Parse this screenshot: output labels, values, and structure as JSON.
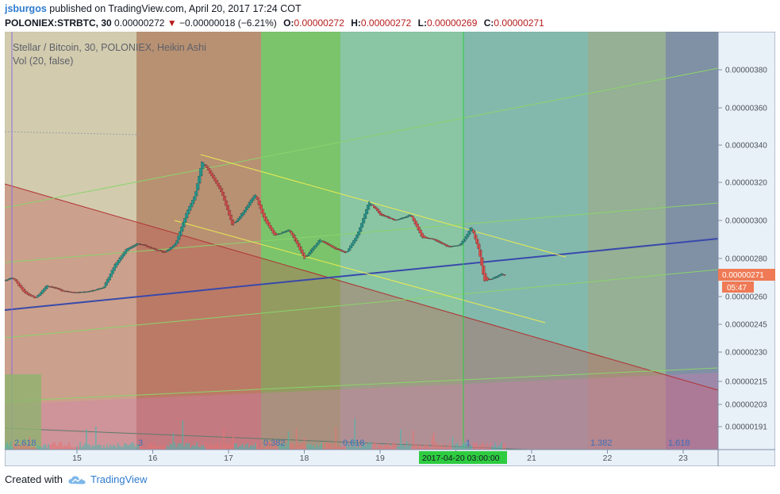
{
  "header": {
    "user": "jsburgos",
    "published": "published on TradingView.com, April 20, 2017 17:24 COT",
    "symbol": "POLONIEX:STRBTC, 30",
    "last": "0.00000272",
    "arrow": "▼",
    "change": "−0.00000018 (−6.21%)",
    "o_label": "O:",
    "o_value": "0.00000272",
    "h_label": "H:",
    "h_value": "0.00000272",
    "l_label": "L:",
    "l_value": "0.00000269",
    "c_label": "C:",
    "c_value": "0.00000271"
  },
  "legend": {
    "title": "Stellar / Bitcoin, 30, POLONIEX, Heikin Ashi",
    "vol": "Vol (20, false)"
  },
  "price_badge": "0.00000271",
  "time_badge": "05:47",
  "crosshair_label": "2017-04-20 03:00:00",
  "fib_labels": [
    "2.618",
    "3",
    "0.382",
    "0.618",
    "1",
    "1.382",
    "1.618"
  ],
  "footer": {
    "created": "Created with",
    "brand": "TradingView"
  },
  "colors": {
    "up": "#26a69a",
    "down": "#ef5350",
    "zone_tan": "#d4c9a6",
    "zone_red": "#c0704f",
    "zone_green": "#3fb24a",
    "zone_teal": "#3aa382",
    "zone_blue": "#2a6f8f",
    "zone_purple": "#3b3f80",
    "trend_blue": "#3949ab",
    "channel": "#e8e84a",
    "crosshair": "#2ecc40"
  },
  "chart_data": {
    "type": "candlestick",
    "style": "Heikin Ashi",
    "interval": "30",
    "exchange": "POLONIEX",
    "y_ticks": [
      "0.00000380",
      "0.00000360",
      "0.00000340",
      "0.00000320",
      "0.00000300",
      "0.00000280",
      "0.00000260",
      "0.00000245",
      "0.00000230",
      "0.00000215",
      "0.00000203",
      "0.00000191"
    ],
    "x_ticks": [
      "15",
      "16",
      "17",
      "18",
      "19",
      "20",
      "21",
      "22",
      "23"
    ],
    "price_path": [
      [
        14.0,
        2.68e-06
      ],
      [
        14.15,
        2.7e-06
      ],
      [
        14.3,
        2.62e-06
      ],
      [
        14.45,
        2.59e-06
      ],
      [
        14.6,
        2.66e-06
      ],
      [
        14.8,
        2.63e-06
      ],
      [
        15.0,
        2.62e-06
      ],
      [
        15.2,
        2.63e-06
      ],
      [
        15.35,
        2.65e-06
      ],
      [
        15.5,
        2.77e-06
      ],
      [
        15.65,
        2.85e-06
      ],
      [
        15.8,
        2.88e-06
      ],
      [
        16.0,
        2.85e-06
      ],
      [
        16.15,
        2.83e-06
      ],
      [
        16.3,
        2.88e-06
      ],
      [
        16.45,
        3.05e-06
      ],
      [
        16.55,
        3.13e-06
      ],
      [
        16.65,
        3.32e-06
      ],
      [
        16.75,
        3.25e-06
      ],
      [
        16.9,
        3.15e-06
      ],
      [
        17.05,
        2.97e-06
      ],
      [
        17.2,
        3.05e-06
      ],
      [
        17.35,
        3.14e-06
      ],
      [
        17.45,
        3.02e-06
      ],
      [
        17.6,
        2.92e-06
      ],
      [
        17.8,
        2.95e-06
      ],
      [
        18.0,
        2.8e-06
      ],
      [
        18.2,
        2.9e-06
      ],
      [
        18.4,
        2.85e-06
      ],
      [
        18.55,
        2.83e-06
      ],
      [
        18.7,
        2.93e-06
      ],
      [
        18.85,
        3.1e-06
      ],
      [
        19.0,
        3.03e-06
      ],
      [
        19.2,
        3e-06
      ],
      [
        19.4,
        3.03e-06
      ],
      [
        19.55,
        2.91e-06
      ],
      [
        19.7,
        2.9e-06
      ],
      [
        19.9,
        2.86e-06
      ],
      [
        20.05,
        2.87e-06
      ],
      [
        20.15,
        2.93e-06
      ],
      [
        20.2,
        2.97e-06
      ],
      [
        20.3,
        2.84e-06
      ],
      [
        20.37,
        2.68e-06
      ],
      [
        20.45,
        2.69e-06
      ],
      [
        20.6,
        2.72e-06
      ],
      [
        20.65,
        2.71e-06
      ]
    ]
  }
}
